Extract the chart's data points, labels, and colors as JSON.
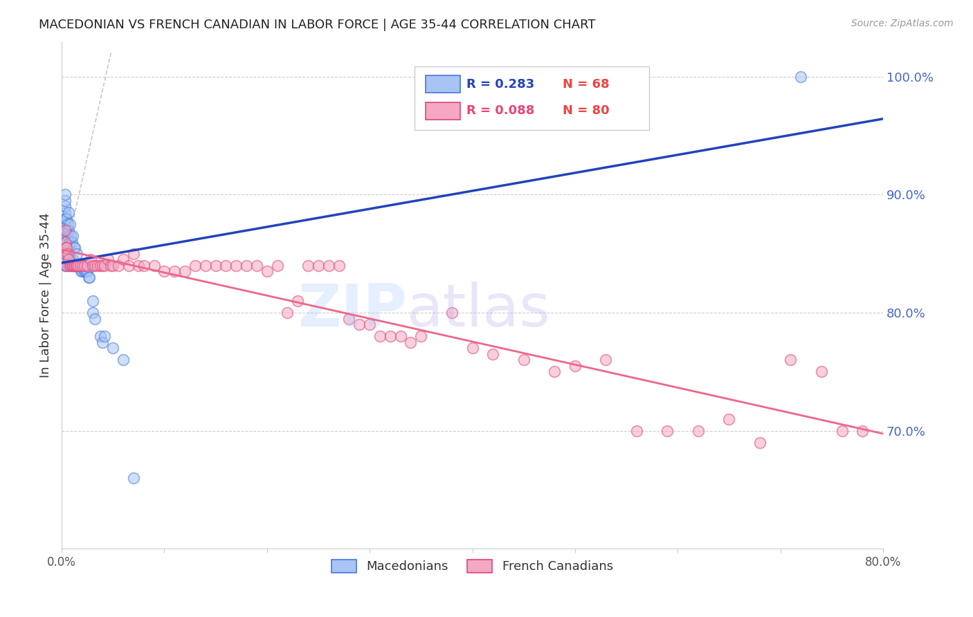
{
  "title": "MACEDONIAN VS FRENCH CANADIAN IN LABOR FORCE | AGE 35-44 CORRELATION CHART",
  "source": "Source: ZipAtlas.com",
  "ylabel": "In Labor Force | Age 35-44",
  "right_ytick_labels": [
    "100.0%",
    "90.0%",
    "80.0%",
    "70.0%"
  ],
  "right_ytick_values": [
    1.0,
    0.9,
    0.8,
    0.7
  ],
  "legend_blue_text_R": "R = 0.283",
  "legend_blue_text_N": "N = 68",
  "legend_pink_text_R": "R = 0.088",
  "legend_pink_text_N": "N = 80",
  "legend_blue_label": "Macedonians",
  "legend_pink_label": "French Canadians",
  "blue_face_color": "#A8C4F5",
  "blue_edge_color": "#4477DD",
  "pink_face_color": "#F5A8C4",
  "pink_edge_color": "#DD4477",
  "blue_line_color": "#2244BB",
  "pink_line_color": "#EE6688",
  "xlim": [
    0.0,
    0.8
  ],
  "ylim": [
    0.6,
    1.03
  ],
  "blue_scatter_x": [
    0.003,
    0.003,
    0.003,
    0.003,
    0.003,
    0.003,
    0.003,
    0.003,
    0.003,
    0.003,
    0.003,
    0.003,
    0.004,
    0.004,
    0.004,
    0.004,
    0.004,
    0.005,
    0.005,
    0.005,
    0.005,
    0.006,
    0.006,
    0.006,
    0.007,
    0.007,
    0.007,
    0.007,
    0.008,
    0.008,
    0.008,
    0.009,
    0.009,
    0.01,
    0.01,
    0.011,
    0.011,
    0.012,
    0.012,
    0.013,
    0.013,
    0.014,
    0.015,
    0.015,
    0.016,
    0.017,
    0.018,
    0.019,
    0.02,
    0.02,
    0.021,
    0.022,
    0.022,
    0.023,
    0.024,
    0.025,
    0.026,
    0.027,
    0.03,
    0.03,
    0.032,
    0.038,
    0.04,
    0.042,
    0.05,
    0.06,
    0.07,
    0.72
  ],
  "blue_scatter_y": [
    0.84,
    0.85,
    0.855,
    0.86,
    0.865,
    0.87,
    0.875,
    0.88,
    0.885,
    0.89,
    0.895,
    0.9,
    0.84,
    0.85,
    0.86,
    0.87,
    0.88,
    0.85,
    0.86,
    0.87,
    0.88,
    0.855,
    0.865,
    0.875,
    0.84,
    0.855,
    0.87,
    0.885,
    0.845,
    0.86,
    0.875,
    0.845,
    0.865,
    0.84,
    0.86,
    0.845,
    0.865,
    0.84,
    0.855,
    0.84,
    0.855,
    0.84,
    0.84,
    0.85,
    0.84,
    0.84,
    0.84,
    0.835,
    0.835,
    0.84,
    0.84,
    0.835,
    0.84,
    0.835,
    0.835,
    0.835,
    0.83,
    0.83,
    0.8,
    0.81,
    0.795,
    0.78,
    0.775,
    0.78,
    0.77,
    0.76,
    0.66,
    1.0
  ],
  "pink_scatter_x": [
    0.003,
    0.003,
    0.003,
    0.004,
    0.005,
    0.005,
    0.006,
    0.007,
    0.008,
    0.009,
    0.01,
    0.011,
    0.012,
    0.013,
    0.014,
    0.015,
    0.016,
    0.018,
    0.02,
    0.022,
    0.025,
    0.028,
    0.03,
    0.032,
    0.035,
    0.038,
    0.04,
    0.042,
    0.045,
    0.048,
    0.05,
    0.055,
    0.06,
    0.065,
    0.07,
    0.075,
    0.08,
    0.09,
    0.1,
    0.11,
    0.12,
    0.13,
    0.14,
    0.15,
    0.16,
    0.17,
    0.18,
    0.19,
    0.2,
    0.21,
    0.22,
    0.23,
    0.24,
    0.25,
    0.26,
    0.27,
    0.28,
    0.29,
    0.3,
    0.31,
    0.32,
    0.33,
    0.34,
    0.35,
    0.38,
    0.4,
    0.42,
    0.45,
    0.48,
    0.5,
    0.53,
    0.56,
    0.59,
    0.62,
    0.65,
    0.68,
    0.71,
    0.74,
    0.76,
    0.78
  ],
  "pink_scatter_y": [
    0.85,
    0.86,
    0.87,
    0.855,
    0.84,
    0.855,
    0.85,
    0.845,
    0.84,
    0.84,
    0.84,
    0.84,
    0.84,
    0.84,
    0.84,
    0.84,
    0.84,
    0.84,
    0.84,
    0.84,
    0.84,
    0.845,
    0.84,
    0.84,
    0.84,
    0.84,
    0.84,
    0.84,
    0.845,
    0.84,
    0.84,
    0.84,
    0.845,
    0.84,
    0.85,
    0.84,
    0.84,
    0.84,
    0.835,
    0.835,
    0.835,
    0.84,
    0.84,
    0.84,
    0.84,
    0.84,
    0.84,
    0.84,
    0.835,
    0.84,
    0.8,
    0.81,
    0.84,
    0.84,
    0.84,
    0.84,
    0.795,
    0.79,
    0.79,
    0.78,
    0.78,
    0.78,
    0.775,
    0.78,
    0.8,
    0.77,
    0.765,
    0.76,
    0.75,
    0.755,
    0.76,
    0.7,
    0.7,
    0.7,
    0.71,
    0.69,
    0.76,
    0.75,
    0.7,
    0.7
  ]
}
